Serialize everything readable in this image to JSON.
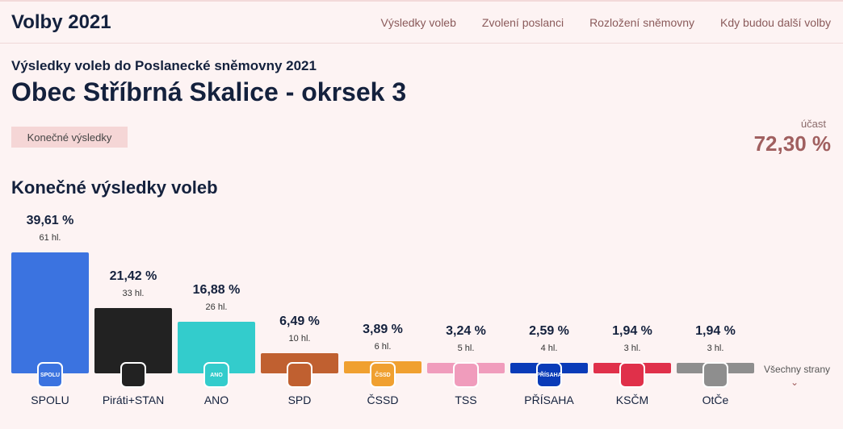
{
  "header": {
    "brand": "Volby 2021",
    "nav": [
      "Výsledky voleb",
      "Zvolení poslanci",
      "Rozložení sněmovny",
      "Kdy budou další volby"
    ]
  },
  "page": {
    "subtitle": "Výsledky voleb do Poslanecké sněmovny 2021",
    "title": "Obec Stříbrná Skalice - okrsek 3",
    "badge": "Konečné výsledky",
    "turnout_label": "účast",
    "turnout_value": "72,30 %",
    "section_title": "Konečné výsledky voleb"
  },
  "chart_data": {
    "type": "bar",
    "categories": [
      "SPOLU",
      "Piráti+STAN",
      "ANO",
      "SPD",
      "ČSSD",
      "TSS",
      "PŘÍSAHA",
      "KSČM",
      "OtČe"
    ],
    "values": [
      39.61,
      21.42,
      16.88,
      6.49,
      3.89,
      3.24,
      2.59,
      1.94,
      1.94
    ],
    "value_labels": [
      "39,61 %",
      "21,42 %",
      "16,88 %",
      "6,49 %",
      "3,89 %",
      "3,24 %",
      "2,59 %",
      "1,94 %",
      "1,94 %"
    ],
    "votes_labels": [
      "61 hl.",
      "33 hl.",
      "26 hl.",
      "10 hl.",
      "6 hl.",
      "5 hl.",
      "4 hl.",
      "3 hl.",
      "3 hl."
    ],
    "colors": [
      "#3b73e0",
      "#222222",
      "#33cccc",
      "#c06030",
      "#f0a030",
      "#f09cbc",
      "#0a3bb8",
      "#e0304a",
      "#8e8e8e"
    ],
    "logo_texts": [
      "SPOLU",
      "",
      "ANO",
      "",
      "ČSSD",
      "",
      "PŘÍSAHA",
      "",
      ""
    ],
    "icons": [
      "spolu-logo-icon",
      "pirati-stan-logo-icon",
      "ano-logo-icon",
      "spd-logo-icon",
      "cssd-logo-icon",
      "tss-logo-icon",
      "prisaha-logo-icon",
      "kscm-logo-icon",
      "otce-logo-icon"
    ],
    "title": "Konečné výsledky voleb",
    "xlabel": "",
    "ylabel": "",
    "ylim": [
      0,
      39.61
    ]
  },
  "more": {
    "label": "Všechny strany",
    "chevron": "⌄"
  }
}
